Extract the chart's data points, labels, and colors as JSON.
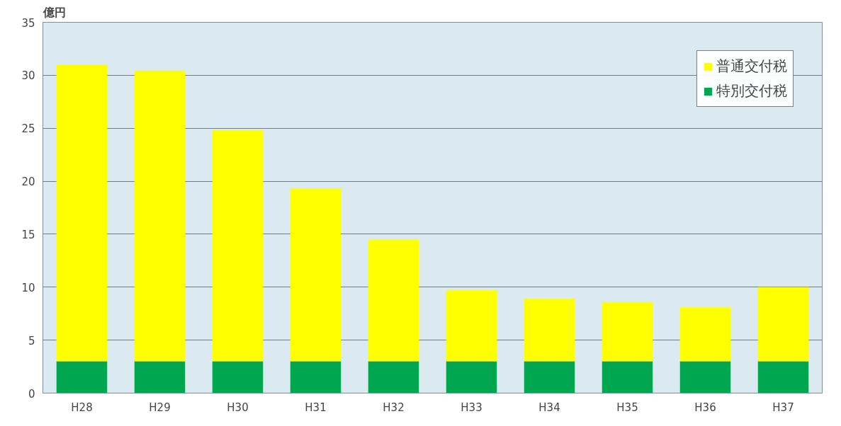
{
  "chart_data": {
    "type": "bar",
    "stacked": true,
    "ylabel": "億円",
    "categories": [
      "H28",
      "H29",
      "H30",
      "H31",
      "H32",
      "H33",
      "H34",
      "H35",
      "H36",
      "H37"
    ],
    "series": [
      {
        "name": "特別交付税",
        "color": "#00a650",
        "values": [
          3,
          3,
          3,
          3,
          3,
          3,
          3,
          3,
          3,
          3
        ]
      },
      {
        "name": "普通交付税",
        "color": "#ffff00",
        "values": [
          28.0,
          27.4,
          21.8,
          16.3,
          11.5,
          6.7,
          5.9,
          5.6,
          5.1,
          7.0
        ]
      }
    ],
    "ylim": [
      0,
      35
    ],
    "yticks": [
      0,
      5,
      10,
      15,
      20,
      25,
      30,
      35
    ],
    "grid": "y",
    "legend": "top right"
  }
}
